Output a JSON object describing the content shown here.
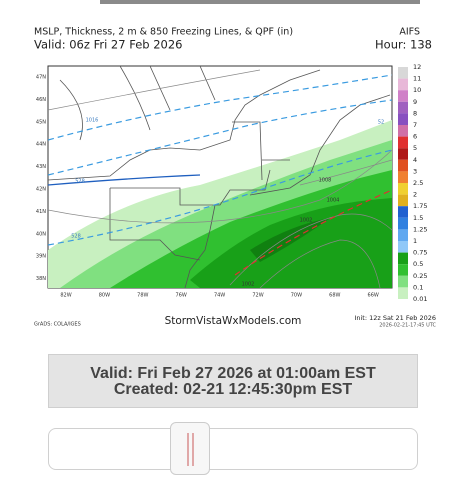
{
  "header": {
    "title": "MSLP, Thickness, 2 m & 850 Freezing Lines, & QPF (in)",
    "model": "AIFS",
    "valid": "Valid: 06z Fri 27 Feb 2026",
    "hour": "Hour: 138"
  },
  "map": {
    "lat_labels": [
      "47N",
      "46N",
      "45N",
      "44N",
      "43N",
      "42N",
      "41N",
      "40N",
      "39N",
      "38N"
    ],
    "lon_labels": [
      "82W",
      "80W",
      "78W",
      "76W",
      "74W",
      "72W",
      "70W",
      "68W",
      "66W"
    ],
    "contour_labels": [
      {
        "text": "1016",
        "color": "#3a7bbf"
      },
      {
        "text": "528",
        "color": "#3a7bbf"
      },
      {
        "text": "528",
        "color": "#3a7bbf"
      },
      {
        "text": "52",
        "color": "#3a7bbf"
      },
      {
        "text": "1008",
        "color": "#333333"
      },
      {
        "text": "1004",
        "color": "#333333"
      },
      {
        "text": "1002",
        "color": "#333333"
      },
      {
        "text": "1002",
        "color": "#333333"
      }
    ]
  },
  "colorbar": {
    "labels": [
      "12",
      "11",
      "10",
      "9",
      "8",
      "7",
      "6",
      "5",
      "4",
      "3",
      "2.5",
      "2",
      "1.75",
      "1.5",
      "1.25",
      "1",
      "0.75",
      "0.5",
      "0.25",
      "0.1",
      "0.01"
    ],
    "colors": [
      "#d8d8d8",
      "#e8b8d8",
      "#d080c8",
      "#a060c0",
      "#8850c0",
      "#d070a8",
      "#e03030",
      "#b01818",
      "#e05020",
      "#f08030",
      "#f0d030",
      "#e0b020",
      "#2060d0",
      "#3080e0",
      "#60a8f0",
      "#90c8f8",
      "#18a018",
      "#30c030",
      "#80e080",
      "#c8f0c0"
    ]
  },
  "footer": {
    "credit": "GrADS: COLA/IGES",
    "site": "StormVistaWxModels.com",
    "init": "Init: 12z Sat 21 Feb 2026",
    "generated": "2026-02-21-17:45 UTC"
  },
  "info": {
    "valid": "Valid: Fri Feb 27 2026 at 01:00am EST",
    "created": "Created: 02-21 12:45:30pm EST"
  }
}
